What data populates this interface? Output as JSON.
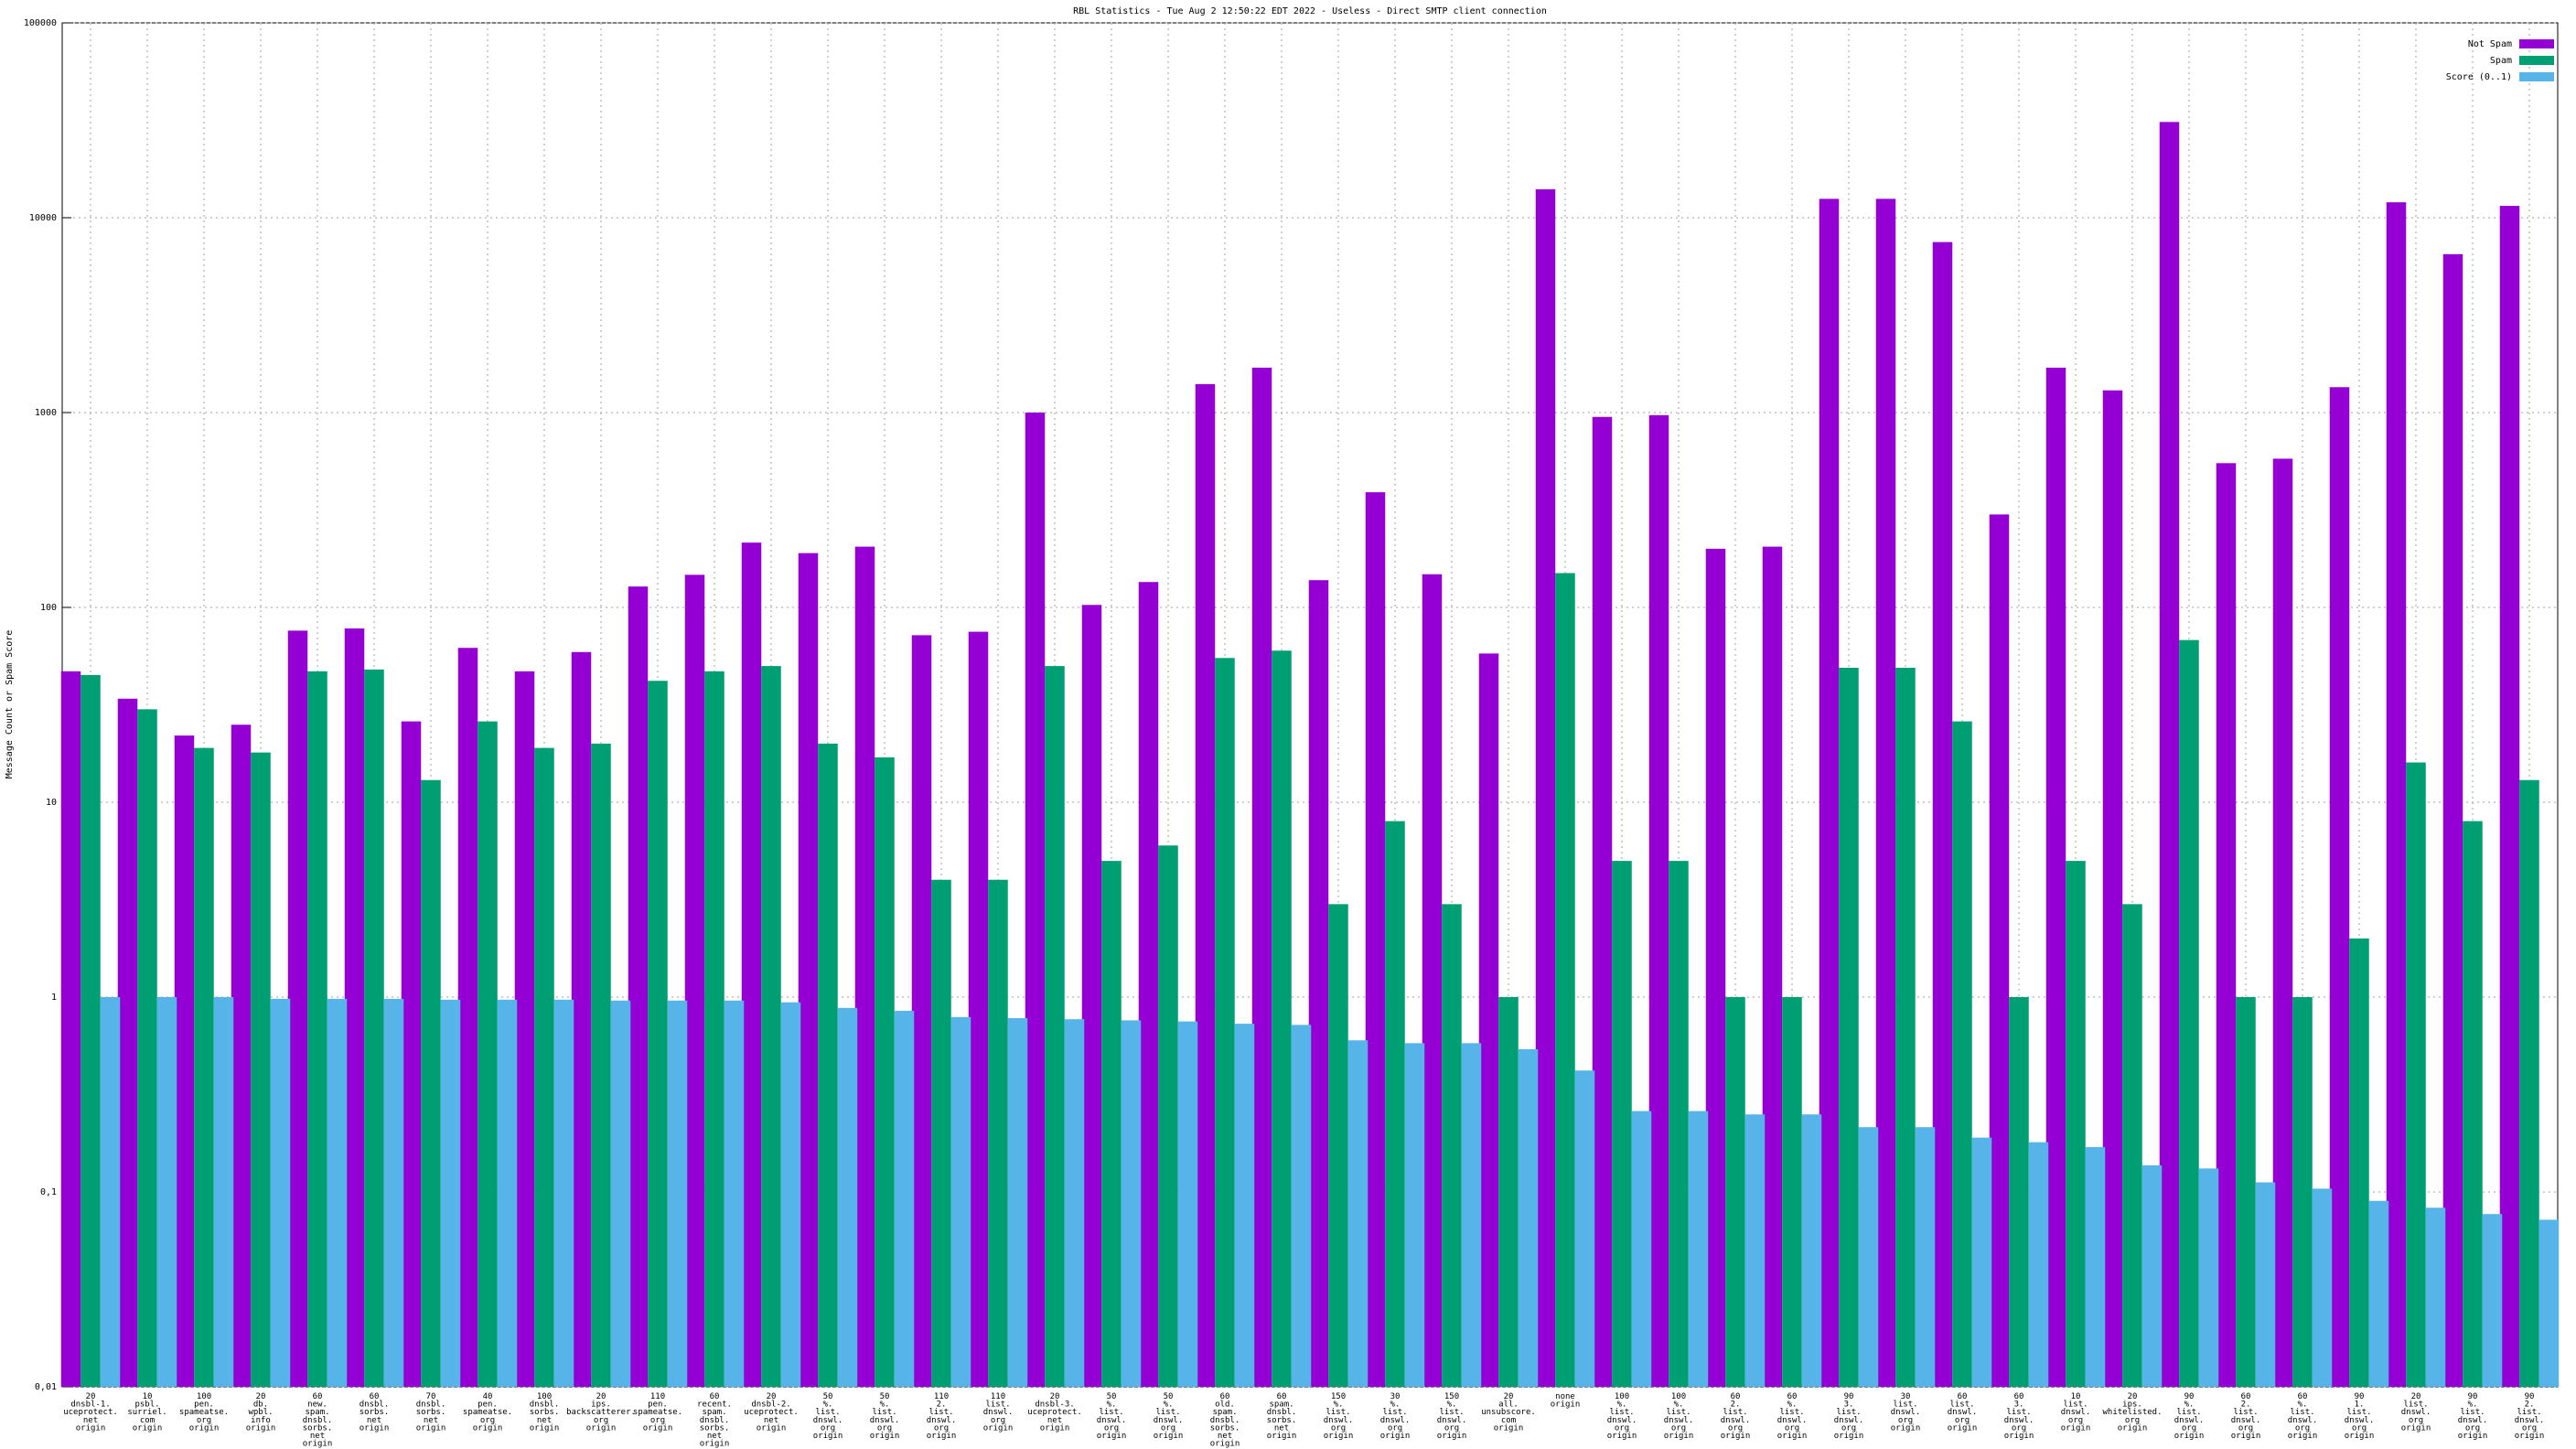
{
  "chart_data": {
    "type": "bar",
    "title": "RBL Statistics - Tue Aug  2 12:50:22 EDT 2022 - Useless - Direct SMTP client connection",
    "y_label": "Message Count or Spam Score",
    "log_y": true,
    "grid": true,
    "legend": "top-right",
    "ylim": [
      0.01,
      100000
    ],
    "yticks": [
      {
        "value": 0.01,
        "label": "0,01"
      },
      {
        "value": 0.1,
        "label": "0,1"
      },
      1,
      10,
      100,
      1000,
      10000,
      100000
    ],
    "categories": [
      [
        "20",
        "dnsbl-1.",
        "uceprotect.",
        "net",
        "origin"
      ],
      [
        "10",
        "psbl.",
        "surriel.",
        "com",
        "origin"
      ],
      [
        "100",
        "pen.",
        "spameatse.",
        "org",
        "origin"
      ],
      [
        "20",
        "db.",
        "wpbl.",
        "info",
        "origin"
      ],
      [
        "60",
        "new.",
        "spam.",
        "dnsbl.",
        "sorbs.",
        "net",
        "origin"
      ],
      [
        "60",
        "dnsbl.",
        "sorbs.",
        "net",
        "origin"
      ],
      [
        "70",
        "dnsbl.",
        "sorbs.",
        "net",
        "origin"
      ],
      [
        "40",
        "pen.",
        "spameatse.",
        "org",
        "origin"
      ],
      [
        "100",
        "dnsbl.",
        "sorbs.",
        "net",
        "origin"
      ],
      [
        "20",
        "ips.",
        "backscatterer.",
        "org",
        "origin"
      ],
      [
        "110",
        "pen.",
        "spameatse.",
        "org",
        "origin"
      ],
      [
        "60",
        "recent.",
        "spam.",
        "dnsbl.",
        "sorbs.",
        "net",
        "origin"
      ],
      [
        "20",
        "dnsbl-2.",
        "uceprotect.",
        "net",
        "origin"
      ],
      [
        "50",
        "%.",
        "list.",
        "dnswl.",
        "org",
        "origin"
      ],
      [
        "50",
        "%.",
        "list.",
        "dnswl.",
        "org",
        "origin"
      ],
      [
        "110",
        "2.",
        "list.",
        "dnswl.",
        "org",
        "origin"
      ],
      [
        "110",
        "list.",
        "dnswl.",
        "org",
        "origin"
      ],
      [
        "20",
        "dnsbl-3.",
        "uceprotect.",
        "net",
        "origin"
      ],
      [
        "50",
        "%.",
        "list.",
        "dnswl.",
        "org",
        "origin"
      ],
      [
        "50",
        "%.",
        "list.",
        "dnswl.",
        "org",
        "origin"
      ],
      [
        "60",
        "old.",
        "spam.",
        "dnsbl.",
        "sorbs.",
        "net",
        "origin"
      ],
      [
        "60",
        "spam.",
        "dnsbl.",
        "sorbs.",
        "net",
        "origin"
      ],
      [
        "150",
        "%.",
        "list.",
        "dnswl.",
        "org",
        "origin"
      ],
      [
        "30",
        "%.",
        "list.",
        "dnswl.",
        "org",
        "origin"
      ],
      [
        "150",
        "%.",
        "list.",
        "dnswl.",
        "org",
        "origin"
      ],
      [
        "20",
        "all.",
        "unsubscore.",
        "com",
        "origin"
      ],
      [
        "none",
        "origin"
      ],
      [
        "100",
        "%.",
        "list.",
        "dnswl.",
        "org",
        "origin"
      ],
      [
        "100",
        "%.",
        "list.",
        "dnswl.",
        "org",
        "origin"
      ],
      [
        "60",
        "2.",
        "list.",
        "dnswl.",
        "org",
        "origin"
      ],
      [
        "60",
        "%.",
        "list.",
        "dnswl.",
        "org",
        "origin"
      ],
      [
        "90",
        "3.",
        "list.",
        "dnswl.",
        "org",
        "origin"
      ],
      [
        "30",
        "list.",
        "dnswl.",
        "org",
        "origin"
      ],
      [
        "60",
        "list.",
        "dnswl.",
        "org",
        "origin"
      ],
      [
        "60",
        "3.",
        "list.",
        "dnswl.",
        "org",
        "origin"
      ],
      [
        "10",
        "list.",
        "dnswl.",
        "org",
        "origin"
      ],
      [
        "20",
        "ips.",
        "whitelisted.",
        "org",
        "origin"
      ],
      [
        "90",
        "%.",
        "list.",
        "dnswl.",
        "org",
        "origin"
      ],
      [
        "60",
        "2.",
        "list.",
        "dnswl.",
        "org",
        "origin"
      ],
      [
        "60",
        "%.",
        "list.",
        "dnswl.",
        "org",
        "origin"
      ],
      [
        "90",
        "1.",
        "list.",
        "dnswl.",
        "org",
        "origin"
      ],
      [
        "20",
        "list.",
        "dnswl.",
        "org",
        "origin"
      ],
      [
        "90",
        "%.",
        "list.",
        "dnswl.",
        "org",
        "origin"
      ],
      [
        "90",
        "2.",
        "list.",
        "dnswl.",
        "org",
        "origin"
      ]
    ],
    "series": [
      {
        "name": "Not Spam",
        "color": "#9400d3",
        "values": [
          47,
          34,
          22,
          25,
          76,
          78,
          26,
          62,
          47,
          59,
          128,
          147,
          215,
          190,
          205,
          72,
          75,
          1000,
          103,
          135,
          1400,
          1700,
          138,
          390,
          148,
          58,
          14000,
          950,
          970,
          200,
          205,
          12500,
          12500,
          7500,
          300,
          1700,
          1300,
          31000,
          550,
          580,
          1350,
          12000,
          6500,
          11500
        ]
      },
      {
        "name": "Spam",
        "color": "#009e73",
        "values": [
          45,
          30,
          19,
          18,
          47,
          48,
          13,
          26,
          19,
          20,
          42,
          47,
          50,
          20,
          17,
          4,
          4,
          50,
          5,
          6,
          55,
          60,
          3,
          8,
          3,
          1,
          150,
          5,
          5,
          1,
          1,
          49,
          49,
          26,
          1,
          5,
          3,
          68,
          1,
          1,
          2,
          16,
          8,
          13
        ]
      },
      {
        "name": "Score (0..1)",
        "color": "#56b4e9",
        "values": [
          1,
          1,
          1,
          0.98,
          0.98,
          0.98,
          0.97,
          0.97,
          0.97,
          0.96,
          0.96,
          0.96,
          0.94,
          0.88,
          0.85,
          0.79,
          0.78,
          0.77,
          0.76,
          0.75,
          0.73,
          0.72,
          0.6,
          0.58,
          0.58,
          0.54,
          0.42,
          0.26,
          0.26,
          0.25,
          0.25,
          0.215,
          0.215,
          0.19,
          0.18,
          0.17,
          0.137,
          0.132,
          0.112,
          0.104,
          0.09,
          0.083,
          0.077,
          0.072
        ]
      }
    ]
  }
}
